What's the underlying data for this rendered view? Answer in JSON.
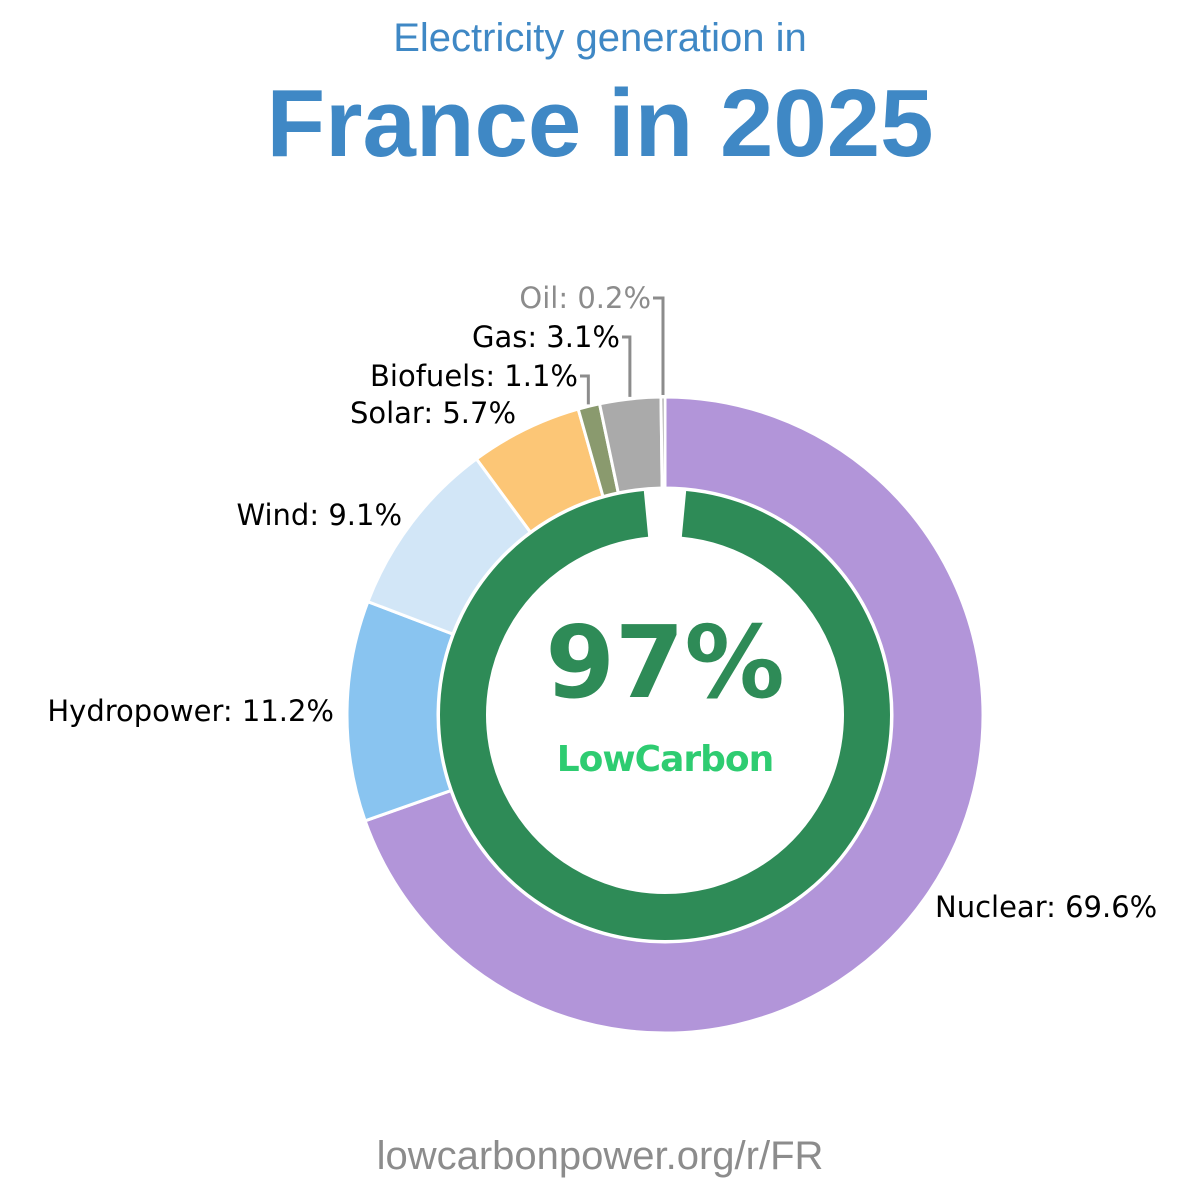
{
  "header": {
    "subtitle": "Electricity generation in",
    "title": "France in 2025"
  },
  "center": {
    "value": "97%",
    "brand": "LowCarbon",
    "value_color": "#2e8b57",
    "brand_color": "#2ecc71"
  },
  "footer": {
    "source": "lowcarbonpower.org/r/FR"
  },
  "chart_data": {
    "type": "pie",
    "title": "France in 2025",
    "subtitle": "Electricity generation in",
    "slices": [
      {
        "label": "Nuclear",
        "value": 69.6,
        "display": "Nuclear: 69.6%",
        "color": "#b295d9",
        "label_color": "#000000"
      },
      {
        "label": "Hydropower",
        "value": 11.2,
        "display": "Hydropower: 11.2%",
        "color": "#89c4f0",
        "label_color": "#000000"
      },
      {
        "label": "Wind",
        "value": 9.1,
        "display": "Wind: 9.1%",
        "color": "#d2e6f7",
        "label_color": "#000000"
      },
      {
        "label": "Solar",
        "value": 5.7,
        "display": "Solar: 5.7%",
        "color": "#fcc676",
        "label_color": "#000000"
      },
      {
        "label": "Biofuels",
        "value": 1.1,
        "display": "Biofuels: 1.1%",
        "color": "#8a9a6e",
        "label_color": "#000000"
      },
      {
        "label": "Gas",
        "value": 3.1,
        "display": "Gas: 3.1%",
        "color": "#aaaaaa",
        "label_color": "#000000"
      },
      {
        "label": "Oil",
        "value": 0.2,
        "display": "Oil: 0.2%",
        "color": "#8c8c8c",
        "label_color": "#8c8c8c"
      }
    ],
    "inner_ring": {
      "label": "Low carbon",
      "value": 97,
      "color": "#2e8b57"
    }
  }
}
